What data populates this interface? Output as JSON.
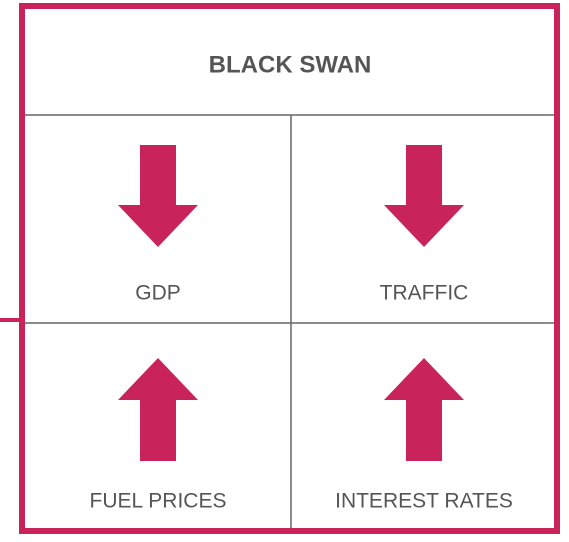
{
  "title": "BLACK SWAN",
  "cells": [
    {
      "label": "GDP",
      "direction": "down"
    },
    {
      "label": "TRAFFIC",
      "direction": "down"
    },
    {
      "label": "FUEL PRICES",
      "direction": "up"
    },
    {
      "label": "INTEREST RATES",
      "direction": "up"
    }
  ]
}
